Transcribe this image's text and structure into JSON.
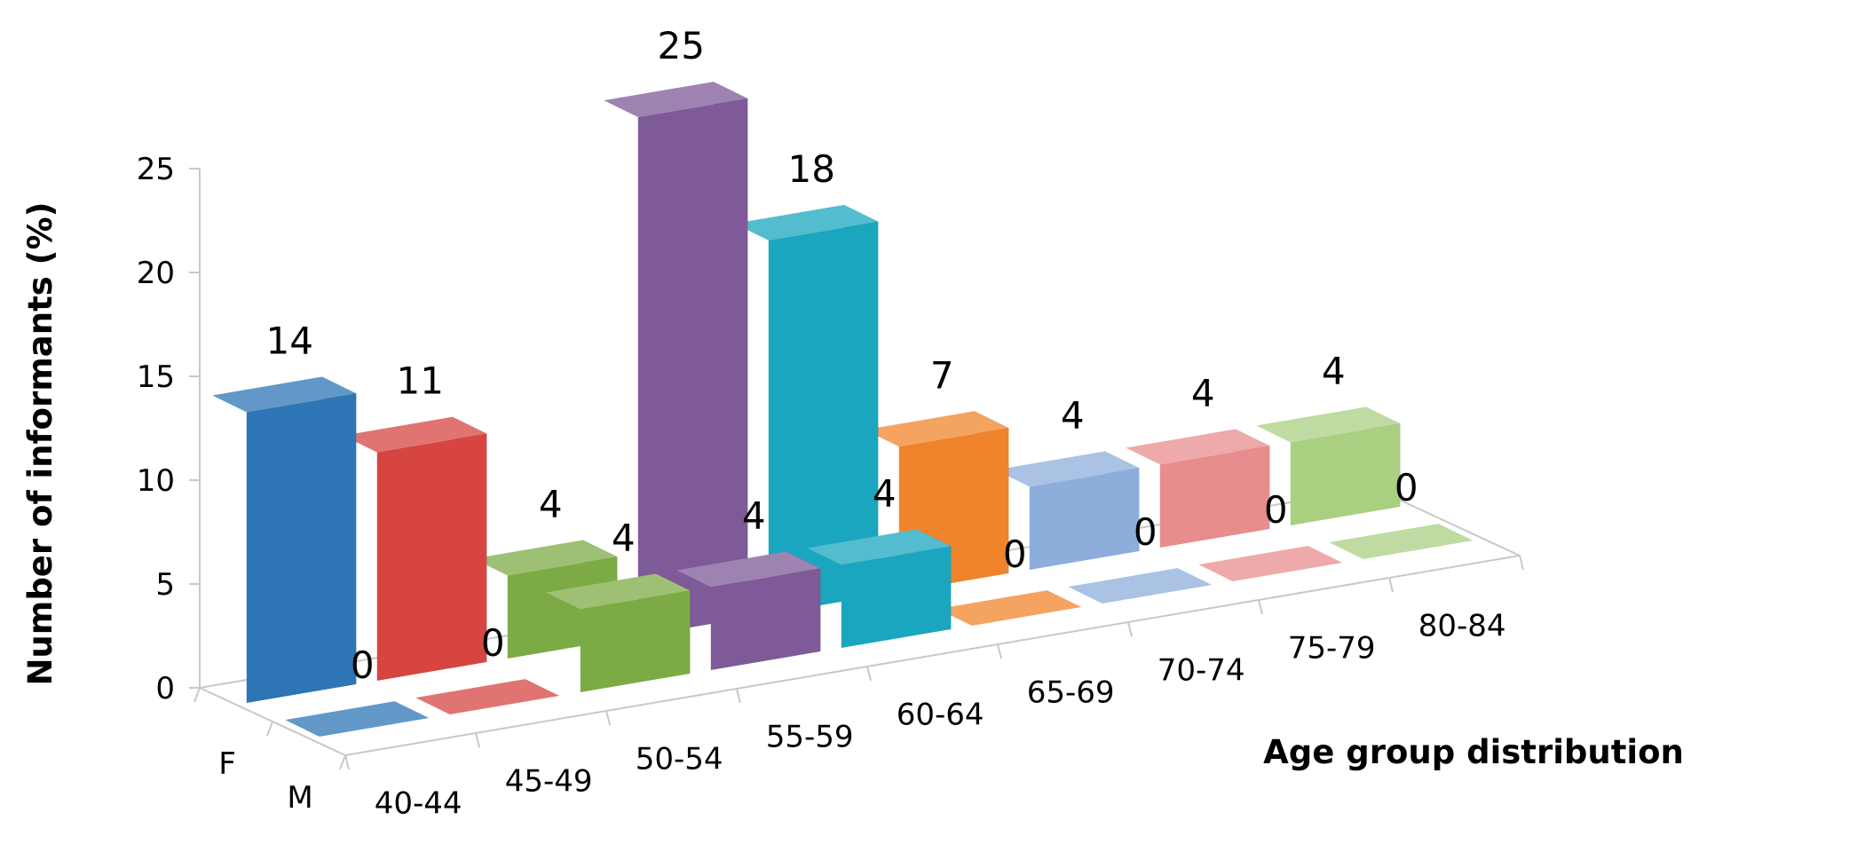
{
  "chart_data": {
    "type": "bar",
    "subtype": "3d-column",
    "ylabel": "Number of informants (%)",
    "xlabel": "Age group distribution",
    "ylim": [
      0,
      25
    ],
    "yticks": [
      0,
      5,
      10,
      15,
      20,
      25
    ],
    "categories": [
      "40-44",
      "45-49",
      "50-54",
      "55-59",
      "60-64",
      "65-69",
      "70-74",
      "75-79",
      "80-84"
    ],
    "series": [
      {
        "name": "F",
        "values": [
          14,
          11,
          4,
          25,
          18,
          7,
          4,
          4,
          4
        ]
      },
      {
        "name": "M",
        "values": [
          0,
          0,
          4,
          4,
          4,
          0,
          0,
          0,
          0
        ]
      }
    ],
    "colors": [
      "#2E75B6",
      "#D64541",
      "#7CAB45",
      "#7E5A98",
      "#1AA6BE",
      "#F0842C",
      "#8DADDB",
      "#E88C8E",
      "#A9CF81"
    ],
    "grid": false,
    "legend": "none"
  }
}
